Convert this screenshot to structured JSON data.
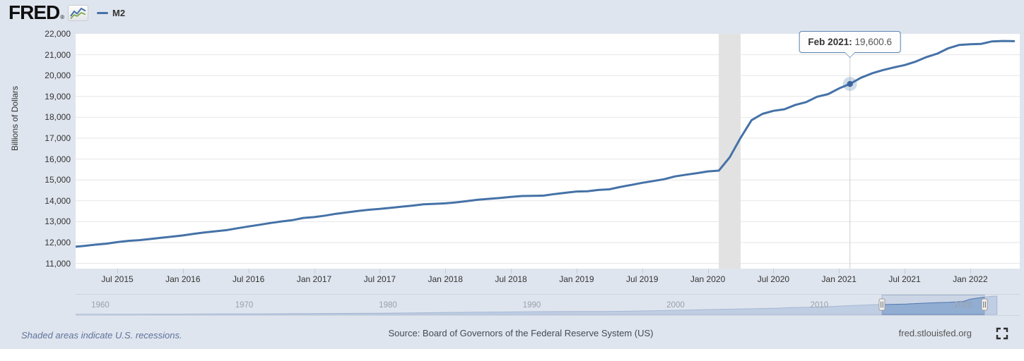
{
  "header": {
    "logo_text": "FRED",
    "logo_registered": "®",
    "legend": {
      "series_label": "M2",
      "series_color": "#4572a7"
    }
  },
  "chart": {
    "y_axis_title": "Billions of Dollars",
    "y_tick_labels": [
      "22,000",
      "21,000",
      "20,000",
      "19,000",
      "18,000",
      "17,000",
      "16,000",
      "15,000",
      "14,000",
      "13,000",
      "12,000",
      "11,000"
    ],
    "x_tick_labels": [
      "Jul 2015",
      "Jan 2016",
      "Jul 2016",
      "Jan 2017",
      "Jul 2017",
      "Jan 2018",
      "Jul 2018",
      "Jan 2019",
      "Jul 2019",
      "Jan 2020",
      "Jul 2020",
      "Jan 2021",
      "Jul 2021",
      "Jan 2022"
    ]
  },
  "tooltip": {
    "label": "Feb 2021:",
    "value": "19,600.6"
  },
  "chart_data": {
    "type": "line",
    "title": "",
    "ylabel": "Billions of Dollars",
    "ylim": [
      10750,
      22000
    ],
    "y_ticks": [
      22000,
      21000,
      20000,
      19000,
      18000,
      17000,
      16000,
      15000,
      14000,
      13000,
      12000,
      11000
    ],
    "grid": true,
    "legend_position": "top-left",
    "recession_band": {
      "start": "2020-02",
      "end": "2020-04",
      "color": "#e2e2e2"
    },
    "hover": {
      "x": "2021-02",
      "label": "Feb 2021",
      "value": 19600.6
    },
    "series": [
      {
        "name": "M2",
        "color": "#4572a7",
        "points": [
          [
            "2015-03",
            11790
          ],
          [
            "2015-04",
            11840
          ],
          [
            "2015-05",
            11900
          ],
          [
            "2015-06",
            11945
          ],
          [
            "2015-07",
            12020
          ],
          [
            "2015-08",
            12080
          ],
          [
            "2015-09",
            12115
          ],
          [
            "2015-10",
            12170
          ],
          [
            "2015-11",
            12225
          ],
          [
            "2015-12",
            12285
          ],
          [
            "2016-01",
            12340
          ],
          [
            "2016-02",
            12420
          ],
          [
            "2016-03",
            12485
          ],
          [
            "2016-04",
            12540
          ],
          [
            "2016-05",
            12595
          ],
          [
            "2016-06",
            12685
          ],
          [
            "2016-07",
            12770
          ],
          [
            "2016-08",
            12850
          ],
          [
            "2016-09",
            12935
          ],
          [
            "2016-10",
            13010
          ],
          [
            "2016-11",
            13070
          ],
          [
            "2016-12",
            13180
          ],
          [
            "2017-01",
            13220
          ],
          [
            "2017-02",
            13290
          ],
          [
            "2017-03",
            13380
          ],
          [
            "2017-04",
            13445
          ],
          [
            "2017-05",
            13515
          ],
          [
            "2017-06",
            13570
          ],
          [
            "2017-07",
            13610
          ],
          [
            "2017-08",
            13665
          ],
          [
            "2017-09",
            13720
          ],
          [
            "2017-10",
            13770
          ],
          [
            "2017-11",
            13835
          ],
          [
            "2017-12",
            13855
          ],
          [
            "2018-01",
            13880
          ],
          [
            "2018-02",
            13925
          ],
          [
            "2018-03",
            13990
          ],
          [
            "2018-04",
            14050
          ],
          [
            "2018-05",
            14095
          ],
          [
            "2018-06",
            14135
          ],
          [
            "2018-07",
            14185
          ],
          [
            "2018-08",
            14230
          ],
          [
            "2018-09",
            14235
          ],
          [
            "2018-10",
            14250
          ],
          [
            "2018-11",
            14325
          ],
          [
            "2018-12",
            14385
          ],
          [
            "2019-01",
            14445
          ],
          [
            "2019-02",
            14460
          ],
          [
            "2019-03",
            14520
          ],
          [
            "2019-04",
            14550
          ],
          [
            "2019-05",
            14665
          ],
          [
            "2019-06",
            14760
          ],
          [
            "2019-07",
            14860
          ],
          [
            "2019-08",
            14945
          ],
          [
            "2019-09",
            15035
          ],
          [
            "2019-10",
            15170
          ],
          [
            "2019-11",
            15250
          ],
          [
            "2019-12",
            15325
          ],
          [
            "2020-01",
            15410
          ],
          [
            "2020-02",
            15445
          ],
          [
            "2020-03",
            16080
          ],
          [
            "2020-04",
            17020
          ],
          [
            "2020-05",
            17865
          ],
          [
            "2020-06",
            18165
          ],
          [
            "2020-07",
            18310
          ],
          [
            "2020-08",
            18385
          ],
          [
            "2020-09",
            18595
          ],
          [
            "2020-10",
            18730
          ],
          [
            "2020-11",
            18985
          ],
          [
            "2020-12",
            19110
          ],
          [
            "2021-01",
            19385
          ],
          [
            "2021-02",
            19600.6
          ],
          [
            "2021-03",
            19895
          ],
          [
            "2021-04",
            20105
          ],
          [
            "2021-05",
            20265
          ],
          [
            "2021-06",
            20390
          ],
          [
            "2021-07",
            20505
          ],
          [
            "2021-08",
            20670
          ],
          [
            "2021-09",
            20890
          ],
          [
            "2021-10",
            21055
          ],
          [
            "2021-11",
            21310
          ],
          [
            "2021-12",
            21470
          ],
          [
            "2022-01",
            21500
          ],
          [
            "2022-02",
            21520
          ],
          [
            "2022-03",
            21640
          ],
          [
            "2022-04",
            21660
          ],
          [
            "2022-05",
            21650
          ]
        ]
      }
    ],
    "navigator": {
      "decade_labels": [
        "1960",
        "1970",
        "1980",
        "1990",
        "2000",
        "2010",
        "2020"
      ],
      "points": [
        [
          1958.3,
          280
        ],
        [
          1959,
          287
        ],
        [
          1962,
          351
        ],
        [
          1965,
          459
        ],
        [
          1968,
          545
        ],
        [
          1970,
          601
        ],
        [
          1972,
          733
        ],
        [
          1975,
          1016
        ],
        [
          1978,
          1370
        ],
        [
          1980,
          1600
        ],
        [
          1982,
          1910
        ],
        [
          1985,
          2495
        ],
        [
          1987,
          2830
        ],
        [
          1990,
          3277
        ],
        [
          1993,
          3482
        ],
        [
          1995,
          3630
        ],
        [
          1997,
          3910
        ],
        [
          2000,
          4913
        ],
        [
          2003,
          6050
        ],
        [
          2005,
          6680
        ],
        [
          2007,
          7450
        ],
        [
          2008,
          8190
        ],
        [
          2010,
          8800
        ],
        [
          2012,
          10450
        ],
        [
          2014,
          11650
        ],
        [
          2015,
          11900
        ],
        [
          2016,
          12340
        ],
        [
          2017,
          13220
        ],
        [
          2018,
          13880
        ],
        [
          2019,
          14445
        ],
        [
          2020,
          15410
        ],
        [
          2020.3,
          17020
        ],
        [
          2020.5,
          18165
        ],
        [
          2021,
          19385
        ],
        [
          2021.5,
          20505
        ],
        [
          2022,
          21500
        ],
        [
          2022.35,
          21700
        ]
      ],
      "selection_years": [
        2014.35,
        2021.48
      ]
    }
  },
  "footer": {
    "recession_note": "Shaded areas indicate U.S. recessions.",
    "source": "Source: Board of Governors of the Federal Reserve System (US)",
    "site_link": "fred.stlouisfed.org"
  }
}
